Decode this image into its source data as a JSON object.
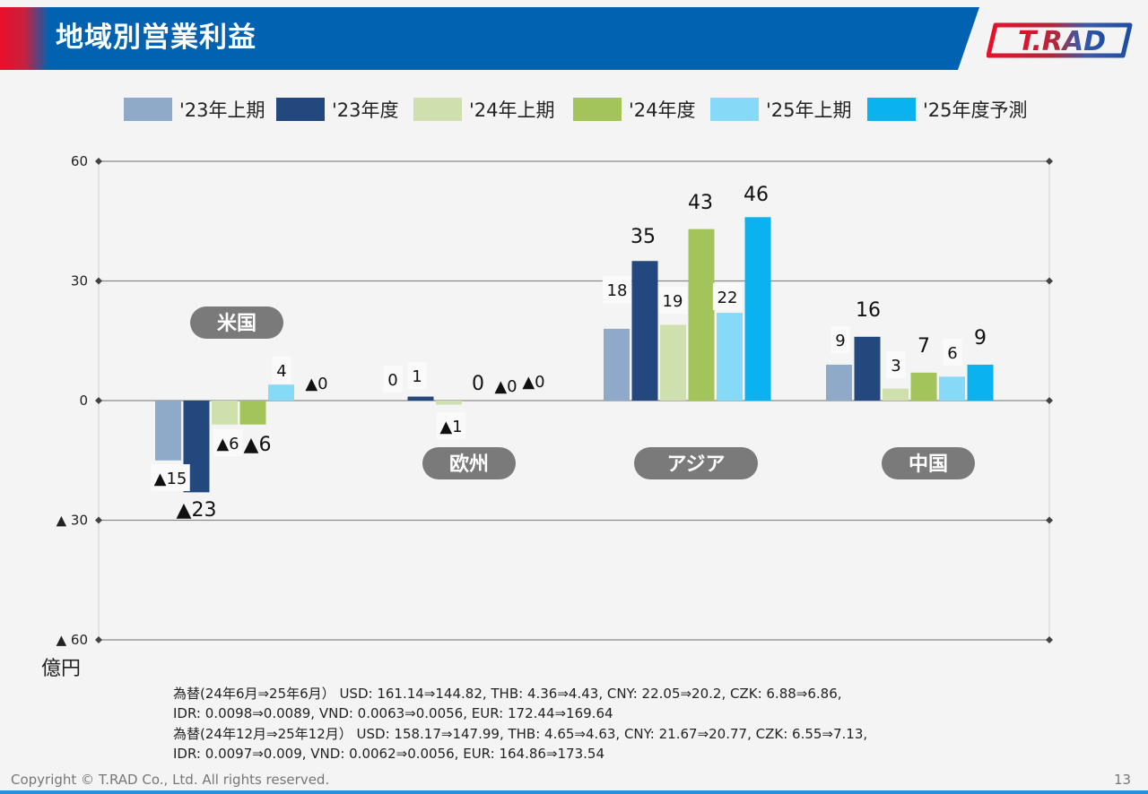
{
  "header": {
    "title": "地域別営業利益",
    "logo_text": "T.RAD",
    "bar_color": "#0062b1",
    "accent_color": "#e8102a"
  },
  "legend": [
    {
      "label": "'23年上期",
      "color": "#8faac8"
    },
    {
      "label": "'23年度",
      "color": "#23487e"
    },
    {
      "label": "'24年上期",
      "color": "#cfe0ae"
    },
    {
      "label": "'24年度",
      "color": "#a2c45a"
    },
    {
      "label": "'25年上期",
      "color": "#86d9f7"
    },
    {
      "label": "'25年度予測",
      "color": "#0ab3f0"
    }
  ],
  "chart_data": {
    "type": "bar",
    "title": "地域別営業利益",
    "ylabel": "億円",
    "ylim": [
      -60,
      60
    ],
    "yticks": [
      60,
      30,
      0,
      -30,
      -60
    ],
    "ytick_labels": [
      "60",
      "30",
      "0",
      "▲ 30",
      "▲ 60"
    ],
    "categories": [
      "米国",
      "欧州",
      "アジア",
      "中国"
    ],
    "series": [
      {
        "name": "'23年上期",
        "values": [
          -15,
          0,
          18,
          9
        ],
        "labels": [
          "▲15",
          "0",
          "18",
          "9"
        ]
      },
      {
        "name": "'23年度",
        "values": [
          -23,
          1,
          35,
          16
        ],
        "labels": [
          "▲23",
          "1",
          "35",
          "16"
        ]
      },
      {
        "name": "'24年上期",
        "values": [
          -6,
          -1,
          19,
          3
        ],
        "labels": [
          "▲6",
          "▲1",
          "19",
          "3"
        ]
      },
      {
        "name": "'24年度",
        "values": [
          -6,
          0,
          43,
          7
        ],
        "labels": [
          "▲6",
          "0",
          "43",
          "7"
        ]
      },
      {
        "name": "'25年上期",
        "values": [
          4,
          0,
          22,
          6
        ],
        "labels": [
          "4",
          "▲0",
          "22",
          "6"
        ]
      },
      {
        "name": "'25年度予測",
        "values": [
          0,
          0,
          46,
          9
        ],
        "labels": [
          "▲0",
          "▲0",
          "46",
          "9"
        ]
      }
    ]
  },
  "unit": "億円",
  "fx_notes": [
    "為替(24年6月⇒25年6月） USD: 161.14⇒144.82, THB: 4.36⇒4.43, CNY: 22.05⇒20.2, CZK: 6.88⇒6.86,",
    "IDR: 0.0098⇒0.0089, VND: 0.0063⇒0.0056, EUR: 172.44⇒169.64",
    "為替(24年12月⇒25年12月） USD: 158.17⇒147.99, THB: 4.65⇒4.63, CNY: 21.67⇒20.77, CZK: 6.55⇒7.13,",
    "IDR: 0.0097⇒0.009, VND: 0.0062⇒0.0056, EUR: 164.86⇒173.54"
  ],
  "footer": {
    "copyright": "Copyright © T.RAD Co., Ltd. All rights reserved.",
    "page_number": "13"
  }
}
